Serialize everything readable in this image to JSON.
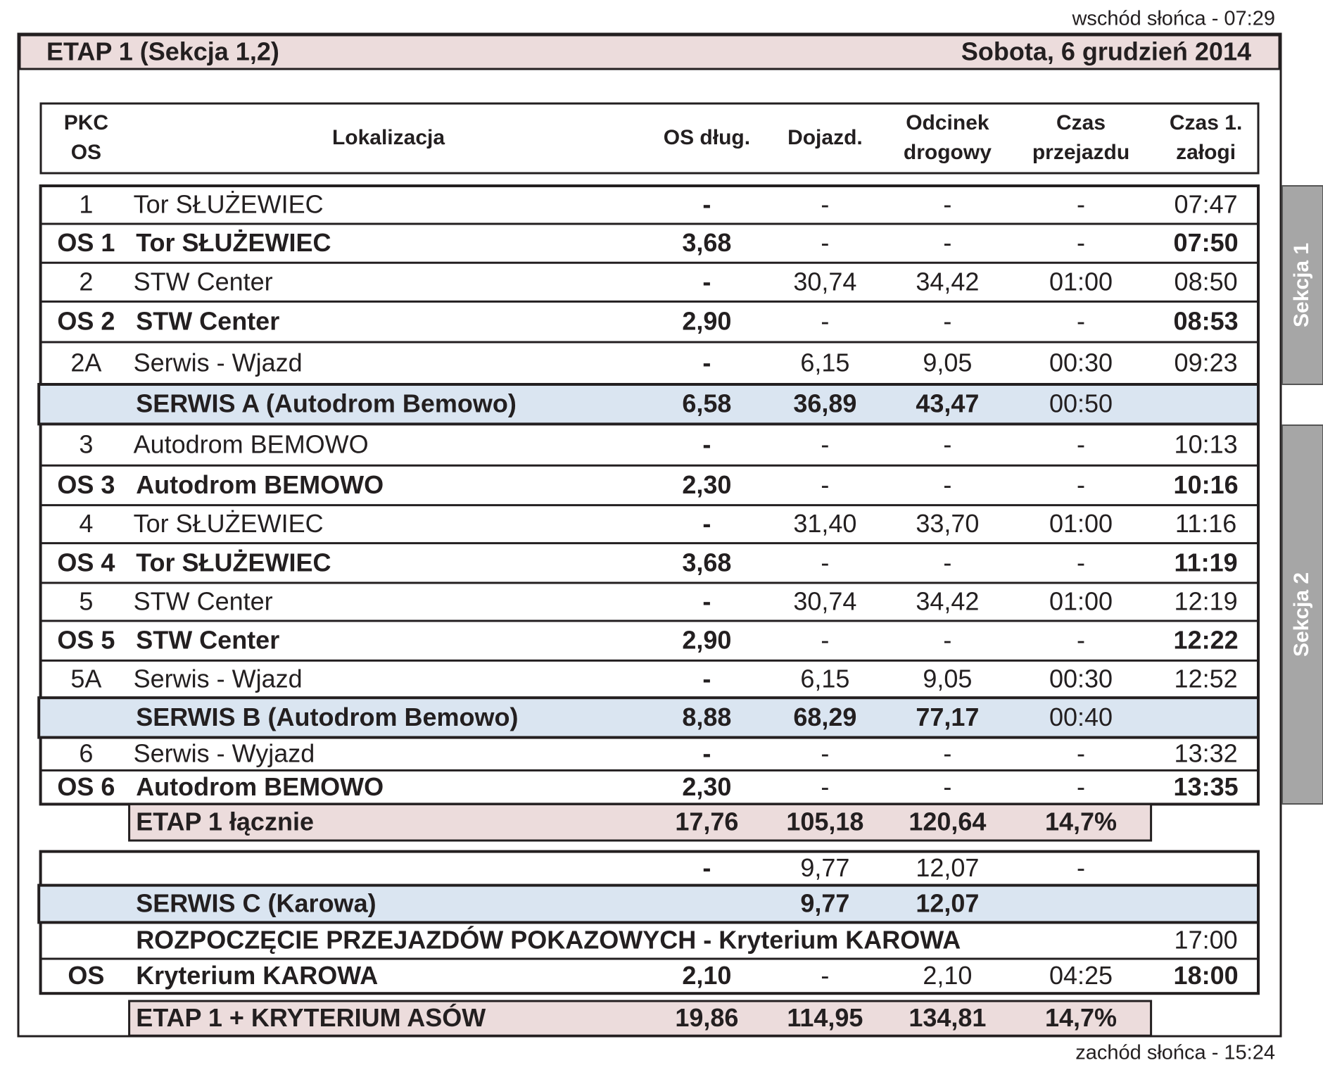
{
  "header": {
    "sunrise": "wschód słońca - 07:29",
    "title": "ETAP 1 (Sekcja 1,2)",
    "date": "Sobota, 6 grudzień 2014",
    "sunset": "zachód słońca - 15:24"
  },
  "sections": [
    "Sekcja 1",
    "Sekcja 2"
  ],
  "table": {
    "columns": [
      [
        "PKC",
        "OS"
      ],
      [
        "Lokalizacja"
      ],
      [
        "OS dług."
      ],
      [
        "Dojazd."
      ],
      [
        "Odcinek",
        "drogowy"
      ],
      [
        "Czas",
        "przejazdu"
      ],
      [
        "Czas 1.",
        "załogi"
      ]
    ],
    "rows": [
      [
        "1",
        "Tor SŁUŻEWIEC",
        "-",
        "-",
        "-",
        "-",
        "07:47"
      ],
      [
        "OS 1",
        "Tor SŁUŻEWIEC",
        "3,68",
        "-",
        "-",
        "-",
        "07:50"
      ],
      [
        "2",
        "STW Center",
        "-",
        "30,74",
        "34,42",
        "01:00",
        "08:50"
      ],
      [
        "OS 2",
        "STW Center",
        "2,90",
        "-",
        "-",
        "-",
        "08:53"
      ],
      [
        "2A",
        "Serwis - Wjazd",
        "-",
        "6,15",
        "9,05",
        "00:30",
        "09:23"
      ],
      [
        null,
        "SERWIS A (Autodrom Bemowo)",
        "6,58",
        "36,89",
        "43,47",
        "00:50",
        null
      ],
      [
        "3",
        "Autodrom BEMOWO",
        "-",
        "-",
        "-",
        "-",
        "10:13"
      ],
      [
        "OS 3",
        "Autodrom BEMOWO",
        "2,30",
        "-",
        "-",
        "-",
        "10:16"
      ],
      [
        "4",
        "Tor SŁUŻEWIEC",
        "-",
        "31,40",
        "33,70",
        "01:00",
        "11:16"
      ],
      [
        "OS 4",
        "Tor SŁUŻEWIEC",
        "3,68",
        "-",
        "-",
        "-",
        "11:19"
      ],
      [
        "5",
        "STW Center",
        "-",
        "30,74",
        "34,42",
        "01:00",
        "12:19"
      ],
      [
        "OS 5",
        "STW Center",
        "2,90",
        "-",
        "-",
        "-",
        "12:22"
      ],
      [
        "5A",
        "Serwis - Wjazd",
        "-",
        "6,15",
        "9,05",
        "00:30",
        "12:52"
      ],
      [
        null,
        "SERWIS B (Autodrom Bemowo)",
        "8,88",
        "68,29",
        "77,17",
        "00:40",
        null
      ],
      [
        "6",
        "Serwis - Wyjazd",
        "-",
        "-",
        "-",
        "-",
        "13:32"
      ],
      [
        "OS 6",
        "Autodrom BEMOWO",
        "2,30",
        "-",
        "-",
        "-",
        "13:35"
      ],
      [
        null,
        "ETAP 1 łącznie",
        "17,76",
        "105,18",
        "120,64",
        "14,7%",
        null
      ],
      [
        null,
        null,
        "-",
        "9,77",
        "12,07",
        "-",
        null
      ],
      [
        null,
        "SERWIS C (Karowa)",
        null,
        "9,77",
        "12,07",
        null,
        null
      ],
      [
        null,
        "ROZPOCZĘCIE PRZEJAZDÓW POKAZOWYCH - Kryterium KAROWA",
        null,
        null,
        null,
        null,
        "17:00"
      ],
      [
        "OS",
        "Kryterium KAROWA",
        "2,10",
        "-",
        "2,10",
        "04:25",
        "18:00"
      ],
      [
        null,
        "ETAP 1 + KRYTERIUM ASÓW",
        "19,86",
        "114,95",
        "134,81",
        "14,7%",
        null
      ]
    ]
  }
}
